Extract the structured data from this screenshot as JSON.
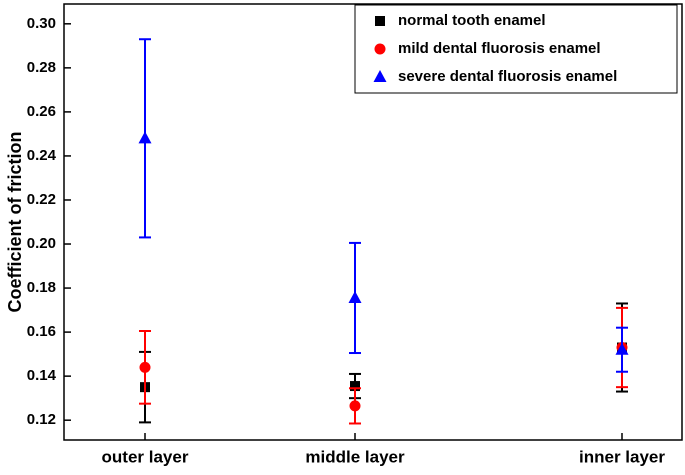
{
  "chart_data": {
    "type": "errorbar-scatter",
    "y_label": "Coefficient of friction",
    "categories": [
      "outer layer",
      "middle layer",
      "inner layer"
    ],
    "series": [
      {
        "name": "normal tooth enamel",
        "color": "#000000",
        "marker": "square",
        "values": [
          0.135,
          0.1355,
          0.153
        ],
        "errors": [
          0.016,
          0.0055,
          0.02
        ]
      },
      {
        "name": "mild dental fluorosis enamel",
        "color": "#ff0000",
        "marker": "circle",
        "values": [
          0.144,
          0.1265,
          0.153
        ],
        "errors": [
          0.0165,
          0.008,
          0.018
        ]
      },
      {
        "name": "severe dental fluorosis enamel",
        "color": "#0000ff",
        "marker": "triangle",
        "values": [
          0.248,
          0.1755,
          0.152
        ],
        "errors": [
          0.045,
          0.025,
          0.01
        ]
      }
    ],
    "ylim": [
      0.111,
      0.309
    ],
    "yticks": [
      0.12,
      0.14,
      0.16,
      0.18,
      {
        "value": 0.2,
        "label": "0.20"
      },
      0.22,
      0.24,
      0.26,
      0.28,
      {
        "value": 0.3,
        "label": "0.30"
      }
    ],
    "legend": "upper right"
  }
}
